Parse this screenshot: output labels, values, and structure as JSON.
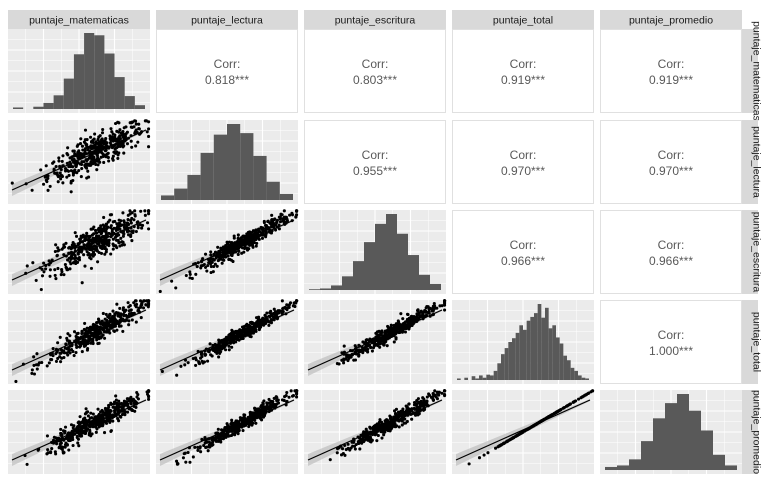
{
  "chart_data": {
    "type": "scatter",
    "variables": [
      "puntaje_matematicas",
      "puntaje_lectura",
      "puntaje_escritura",
      "puntaje_total",
      "puntaje_promedio"
    ],
    "correlation_label": "Corr:",
    "correlations": [
      {
        "row": 0,
        "col": 1,
        "value": "0.818***"
      },
      {
        "row": 0,
        "col": 2,
        "value": "0.803***"
      },
      {
        "row": 0,
        "col": 3,
        "value": "0.919***"
      },
      {
        "row": 0,
        "col": 4,
        "value": "0.919***"
      },
      {
        "row": 1,
        "col": 2,
        "value": "0.955***"
      },
      {
        "row": 1,
        "col": 3,
        "value": "0.970***"
      },
      {
        "row": 1,
        "col": 4,
        "value": "0.970***"
      },
      {
        "row": 2,
        "col": 3,
        "value": "0.966***"
      },
      {
        "row": 2,
        "col": 4,
        "value": "0.966***"
      },
      {
        "row": 3,
        "col": 4,
        "value": "1.000***"
      }
    ],
    "histograms": [
      [
        0.02,
        0,
        0.03,
        0.08,
        0.18,
        0.4,
        0.72,
        1.0,
        0.97,
        0.73,
        0.42,
        0.17,
        0.05
      ],
      [
        0.06,
        0.15,
        0.33,
        0.62,
        0.86,
        1.0,
        0.88,
        0.58,
        0.24,
        0.08
      ],
      [
        0.01,
        0.02,
        0.06,
        0.18,
        0.38,
        0.63,
        0.87,
        1.0,
        0.74,
        0.46,
        0.2,
        0.08
      ],
      [
        0.02,
        0,
        0.03,
        0,
        0.05,
        0.02,
        0.06,
        0.03,
        0.07,
        0.06,
        0.12,
        0.22,
        0.34,
        0.42,
        0.5,
        0.55,
        0.62,
        0.72,
        0.66,
        0.78,
        0.83,
        0.88,
        1.0,
        0.82,
        0.95,
        0.68,
        0.72,
        0.56,
        0.48,
        0.32,
        0.26,
        0.16,
        0.12,
        0.06,
        0.03,
        0.02
      ],
      [
        0.04,
        0.06,
        0.14,
        0.38,
        0.68,
        0.88,
        1.0,
        0.78,
        0.52,
        0.2,
        0.06
      ]
    ],
    "scatter_points_per_panel": 1000,
    "smooth_line": true,
    "grid": true,
    "background": "#ebebeb",
    "point_color": "#000000",
    "bar_color": "#595959",
    "strip_color": "#d9d9d9"
  }
}
